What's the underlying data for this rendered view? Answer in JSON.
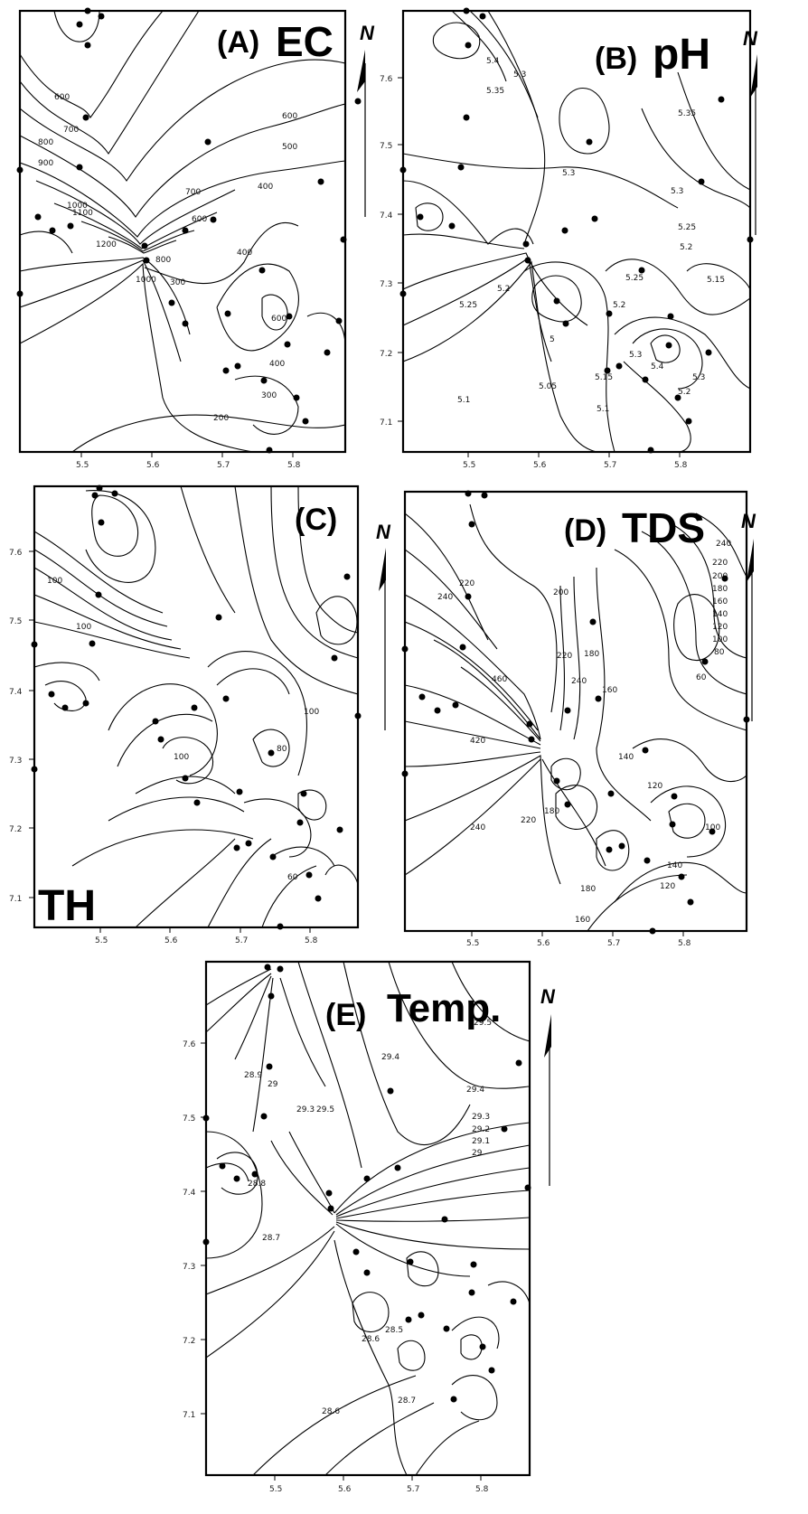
{
  "panels": [
    {
      "id": "A",
      "letter": "(A)",
      "name": "EC",
      "north": "N",
      "x_ticks": [
        "5.5",
        "5.6",
        "5.7",
        "5.8"
      ],
      "y_ticks": [],
      "contour_labels": [
        "600",
        "700",
        "800",
        "900",
        "1000",
        "1100",
        "1200",
        "600",
        "500",
        "400",
        "700",
        "600",
        "300",
        "400",
        "600",
        "400",
        "300",
        "200",
        "1000",
        "800"
      ],
      "sites": 28
    },
    {
      "id": "B",
      "letter": "(B)",
      "name": "pH",
      "north": "N",
      "x_ticks": [
        "5.5",
        "5.6",
        "5.7",
        "5.8"
      ],
      "y_ticks": [
        "7.6",
        "7.5",
        "7.4",
        "7.3",
        "7.2",
        "7.1"
      ],
      "contour_labels": [
        "5.4",
        "5.35",
        "5.3",
        "5.35",
        "5.3",
        "5.3",
        "5.25",
        "5.25",
        "5.2",
        "5.15",
        "5.25",
        "5.2",
        "5",
        "5.05",
        "5.1",
        "5.15",
        "5.1",
        "5.2",
        "5.3",
        "5.4",
        "5.3",
        "5.2"
      ],
      "sites": 28
    },
    {
      "id": "C",
      "letter": "(C)",
      "name": "TH",
      "north": "N",
      "x_ticks": [
        "5.5",
        "5.6",
        "5.7",
        "5.8"
      ],
      "y_ticks": [
        "7.6",
        "7.5",
        "7.4",
        "7.3",
        "7.2",
        "7.1"
      ],
      "contour_labels": [
        "100",
        "100",
        "100",
        "80",
        "100",
        "60"
      ],
      "sites": 30
    },
    {
      "id": "D",
      "letter": "(D)",
      "name": "TDS",
      "north": "N",
      "x_ticks": [
        "5.5",
        "5.6",
        "5.7",
        "5.8"
      ],
      "y_ticks": [],
      "contour_labels": [
        "220",
        "240",
        "200",
        "220",
        "240",
        "180",
        "160",
        "460",
        "420",
        "240",
        "220",
        "180",
        "140",
        "120",
        "180",
        "160",
        "140",
        "120",
        "100",
        "240",
        "220",
        "200",
        "180",
        "160",
        "140",
        "120",
        "100",
        "80",
        "60"
      ],
      "sites": 28
    },
    {
      "id": "E",
      "letter": "(E)",
      "name": "Temp.",
      "north": "N",
      "x_ticks": [
        "5.5",
        "5.6",
        "5.7",
        "5.8"
      ],
      "y_ticks": [
        "7.6",
        "7.5",
        "7.4",
        "7.3",
        "7.2",
        "7.1"
      ],
      "contour_labels": [
        "28.9",
        "29",
        "29.4",
        "29.5",
        "29.4",
        "29.3",
        "29.2",
        "29.1",
        "29",
        "28.6",
        "28.7",
        "28.5",
        "28.6",
        "28.7",
        "28.8",
        "29.5",
        "29.3"
      ],
      "sites": 28
    }
  ]
}
